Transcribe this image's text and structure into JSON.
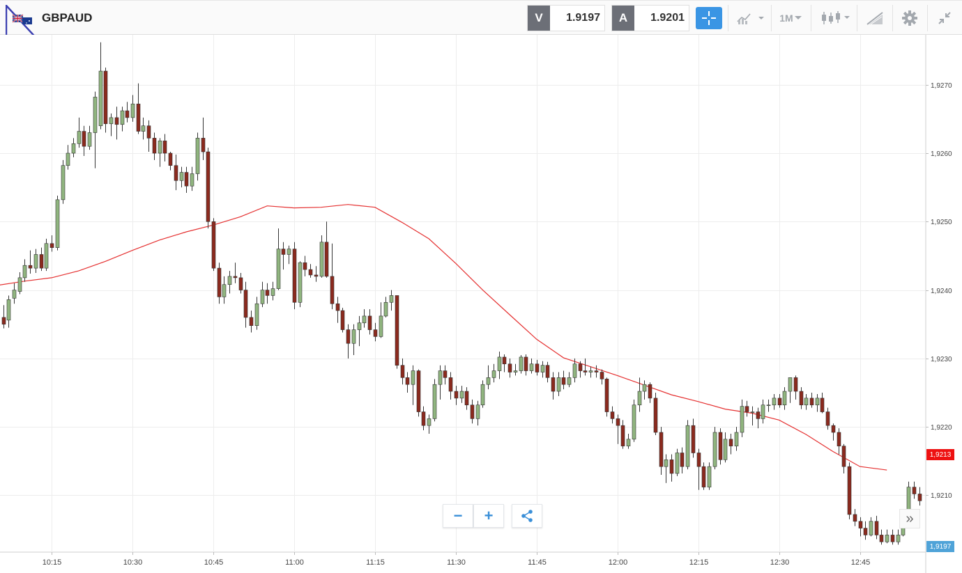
{
  "header": {
    "symbol": "GBPAUD",
    "sell_label": "V",
    "sell_price": "1.9197",
    "buy_label": "A",
    "buy_price": "1.9201",
    "timeframe": "1M"
  },
  "toolbar_icons": [
    "flag-icon",
    "crosshair-icon",
    "chart-type-icon",
    "timeframe-dropdown",
    "candlestick-icon",
    "drawing-tools-icon",
    "gear-icon",
    "collapse-icon"
  ],
  "colors": {
    "bull": "#90b57f",
    "bear": "#8b2a1e",
    "ma_line": "#e53030",
    "current_badge": "#ee1111",
    "bid_badge": "#4fa3d8",
    "accent": "#3a95e4"
  },
  "axis": {
    "current_price_label": "1,9213",
    "bid_price_label": "1,9197"
  },
  "controls": {
    "zoom_out": "−",
    "zoom_in": "+",
    "scroll_right": "»"
  },
  "chart_data": {
    "type": "candlestick",
    "interval": "1M",
    "y_ticks": [
      "1,9270",
      "1,9260",
      "1,9250",
      "1,9240",
      "1,9230",
      "1,9220",
      "1,9210"
    ],
    "y_tick_values": [
      1.927,
      1.926,
      1.925,
      1.924,
      1.923,
      1.922,
      1.921
    ],
    "x_ticks": [
      "10:15",
      "10:30",
      "10:45",
      "11:00",
      "11:15",
      "11:30",
      "11:45",
      "12:00",
      "12:15",
      "12:30",
      "12:45"
    ],
    "ylim": [
      1.92017,
      1.92773
    ],
    "grid": true,
    "moving_average": [
      [
        -1,
        1.92407
      ],
      [
        4,
        1.92413
      ],
      [
        9,
        1.92418
      ],
      [
        14,
        1.92428
      ],
      [
        19,
        1.92442
      ],
      [
        24,
        1.92458
      ],
      [
        29,
        1.92473
      ],
      [
        34,
        1.92485
      ],
      [
        39,
        1.92495
      ],
      [
        44,
        1.92507
      ],
      [
        49,
        1.92523
      ],
      [
        54,
        1.9252
      ],
      [
        59,
        1.92521
      ],
      [
        64,
        1.92525
      ],
      [
        69,
        1.92521
      ],
      [
        74,
        1.92499
      ],
      [
        79,
        1.92475
      ],
      [
        84,
        1.92439
      ],
      [
        89,
        1.924
      ],
      [
        94,
        1.92364
      ],
      [
        99,
        1.92328
      ],
      [
        104,
        1.92301
      ],
      [
        109,
        1.92288
      ],
      [
        114,
        1.92275
      ],
      [
        119,
        1.92261
      ],
      [
        124,
        1.92247
      ],
      [
        129,
        1.92237
      ],
      [
        134,
        1.92226
      ],
      [
        139,
        1.9222
      ],
      [
        144,
        1.9221
      ],
      [
        149,
        1.92189
      ],
      [
        154,
        1.92164
      ],
      [
        159,
        1.92142
      ],
      [
        164,
        1.92137
      ]
    ],
    "candles": [
      [
        1.9236,
        1.9235,
        1.92378,
        1.92344
      ],
      [
        1.92356,
        1.92386,
        1.92392,
        1.92345
      ],
      [
        1.92388,
        1.924,
        1.9241,
        1.9238
      ],
      [
        1.92398,
        1.92418,
        1.92426,
        1.92394
      ],
      [
        1.92418,
        1.92436,
        1.92445,
        1.92412
      ],
      [
        1.92436,
        1.92432,
        1.92458,
        1.92424
      ],
      [
        1.92432,
        1.92452,
        1.9246,
        1.92425
      ],
      [
        1.92452,
        1.92432,
        1.92462,
        1.92428
      ],
      [
        1.92432,
        1.92468,
        1.92475,
        1.92428
      ],
      [
        1.92468,
        1.92462,
        1.9248,
        1.92456
      ],
      [
        1.92462,
        1.92532,
        1.92538,
        1.92458
      ],
      [
        1.92532,
        1.92582,
        1.9259,
        1.92526
      ],
      [
        1.92582,
        1.926,
        1.92612,
        1.92576
      ],
      [
        1.926,
        1.92614,
        1.92622,
        1.92594
      ],
      [
        1.92614,
        1.92632,
        1.92652,
        1.92608
      ],
      [
        1.92632,
        1.9261,
        1.9264,
        1.92596
      ],
      [
        1.9261,
        1.9263,
        1.9264,
        1.92605
      ],
      [
        1.9263,
        1.92682,
        1.9269,
        1.92578
      ],
      [
        1.9264,
        1.9272,
        1.92762,
        1.92635
      ],
      [
        1.9272,
        1.92643,
        1.92725,
        1.9263
      ],
      [
        1.92643,
        1.92652,
        1.92658,
        1.92625
      ],
      [
        1.92652,
        1.92642,
        1.92668,
        1.9262
      ],
      [
        1.92642,
        1.92662,
        1.92668,
        1.92632
      ],
      [
        1.92662,
        1.92652,
        1.92675,
        1.92645
      ],
      [
        1.92652,
        1.92672,
        1.92685,
        1.92646
      ],
      [
        1.92672,
        1.92632,
        1.92702,
        1.92628
      ],
      [
        1.92632,
        1.9264,
        1.92652,
        1.9262
      ],
      [
        1.9264,
        1.92622,
        1.92648,
        1.92602
      ],
      [
        1.92622,
        1.926,
        1.9263,
        1.9259
      ],
      [
        1.926,
        1.92618,
        1.92622,
        1.9258
      ],
      [
        1.92618,
        1.926,
        1.92628,
        1.92588
      ],
      [
        1.926,
        1.92582,
        1.92602,
        1.92575
      ],
      [
        1.92582,
        1.9256,
        1.92598,
        1.92546
      ],
      [
        1.9256,
        1.92572,
        1.9258,
        1.9255
      ],
      [
        1.92572,
        1.92552,
        1.9258,
        1.92542
      ],
      [
        1.92552,
        1.9257,
        1.9258,
        1.92545
      ],
      [
        1.9257,
        1.92622,
        1.9263,
        1.9256
      ],
      [
        1.92622,
        1.92602,
        1.92652,
        1.9259
      ],
      [
        1.92602,
        1.925,
        1.92608,
        1.9249
      ],
      [
        1.925,
        1.92432,
        1.92505,
        1.92428
      ],
      [
        1.92432,
        1.9239,
        1.9244,
        1.9238
      ],
      [
        1.9239,
        1.92408,
        1.9242,
        1.9238
      ],
      [
        1.92408,
        1.9242,
        1.92428,
        1.92395
      ],
      [
        1.9242,
        1.92418,
        1.9244,
        1.9241
      ],
      [
        1.92418,
        1.924,
        1.92425,
        1.92395
      ],
      [
        1.924,
        1.9236,
        1.92412,
        1.92345
      ],
      [
        1.9236,
        1.92348,
        1.9237,
        1.92338
      ],
      [
        1.92348,
        1.9238,
        1.9239,
        1.92342
      ],
      [
        1.9238,
        1.924,
        1.92412,
        1.92375
      ],
      [
        1.924,
        1.92392,
        1.9241,
        1.9238
      ],
      [
        1.92392,
        1.92402,
        1.92412,
        1.92385
      ],
      [
        1.92402,
        1.9246,
        1.9249,
        1.924
      ],
      [
        1.9246,
        1.92452,
        1.9247,
        1.9243
      ],
      [
        1.92452,
        1.9246,
        1.92465,
        1.92438
      ],
      [
        1.9246,
        1.92382,
        1.9247,
        1.92372
      ],
      [
        1.92382,
        1.9244,
        1.92442,
        1.92375
      ],
      [
        1.9244,
        1.9243,
        1.9245,
        1.9242
      ],
      [
        1.9243,
        1.92422,
        1.92438,
        1.92418
      ],
      [
        1.92422,
        1.9242,
        1.92435,
        1.92412
      ],
      [
        1.9242,
        1.9247,
        1.9248,
        1.92418
      ],
      [
        1.9247,
        1.9242,
        1.925,
        1.92418
      ],
      [
        1.9242,
        1.9238,
        1.92468,
        1.92372
      ],
      [
        1.9238,
        1.9237,
        1.9239,
        1.92352
      ],
      [
        1.9237,
        1.92342,
        1.92374,
        1.92338
      ],
      [
        1.92342,
        1.92322,
        1.9235,
        1.923
      ],
      [
        1.92322,
        1.92342,
        1.9235,
        1.92305
      ],
      [
        1.92342,
        1.92352,
        1.92362,
        1.92318
      ],
      [
        1.92352,
        1.92362,
        1.92372,
        1.92345
      ],
      [
        1.92362,
        1.92342,
        1.92372,
        1.92335
      ],
      [
        1.92342,
        1.92332,
        1.92352,
        1.92325
      ],
      [
        1.92332,
        1.92362,
        1.92382,
        1.9233
      ],
      [
        1.92362,
        1.92382,
        1.9239,
        1.9236
      ],
      [
        1.92382,
        1.92392,
        1.924,
        1.9237
      ],
      [
        1.92392,
        1.9229,
        1.92392,
        1.92285
      ],
      [
        1.9229,
        1.92272,
        1.923,
        1.92262
      ],
      [
        1.92272,
        1.92262,
        1.9228,
        1.9225
      ],
      [
        1.92262,
        1.92282,
        1.9229,
        1.92232
      ],
      [
        1.92282,
        1.92222,
        1.92284,
        1.92215
      ],
      [
        1.92222,
        1.92202,
        1.9223,
        1.92195
      ],
      [
        1.92202,
        1.92212,
        1.92218,
        1.9219
      ],
      [
        1.92212,
        1.92262,
        1.9227,
        1.92208
      ],
      [
        1.92262,
        1.92282,
        1.9229,
        1.9224
      ],
      [
        1.92282,
        1.92272,
        1.9229,
        1.92262
      ],
      [
        1.92272,
        1.92252,
        1.9228,
        1.9224
      ],
      [
        1.92252,
        1.92242,
        1.9226,
        1.92232
      ],
      [
        1.92242,
        1.92252,
        1.9226,
        1.92235
      ],
      [
        1.92252,
        1.92232,
        1.92258,
        1.92225
      ],
      [
        1.92232,
        1.92212,
        1.9224,
        1.92205
      ],
      [
        1.92212,
        1.92232,
        1.92238,
        1.92202
      ],
      [
        1.92232,
        1.92262,
        1.92268,
        1.92228
      ],
      [
        1.92262,
        1.92272,
        1.9229,
        1.92255
      ],
      [
        1.92272,
        1.92282,
        1.92292,
        1.92265
      ],
      [
        1.92282,
        1.92302,
        1.9231,
        1.9227
      ],
      [
        1.92302,
        1.92292,
        1.92306,
        1.9228
      ],
      [
        1.92292,
        1.9228,
        1.923,
        1.92272
      ],
      [
        1.9228,
        1.92282,
        1.92292,
        1.92275
      ],
      [
        1.92282,
        1.92302,
        1.92305,
        1.92278
      ],
      [
        1.92302,
        1.92282,
        1.92306,
        1.92275
      ],
      [
        1.92282,
        1.92292,
        1.923,
        1.92278
      ],
      [
        1.92292,
        1.9228,
        1.92298,
        1.92275
      ],
      [
        1.9228,
        1.9229,
        1.92296,
        1.92272
      ],
      [
        1.9229,
        1.92272,
        1.92295,
        1.92265
      ],
      [
        1.92272,
        1.92252,
        1.9228,
        1.9224
      ],
      [
        1.92252,
        1.92272,
        1.9228,
        1.92245
      ],
      [
        1.92272,
        1.92262,
        1.92282,
        1.92255
      ],
      [
        1.92262,
        1.92272,
        1.9228,
        1.92258
      ],
      [
        1.92272,
        1.92292,
        1.923,
        1.92265
      ],
      [
        1.92292,
        1.92282,
        1.92296,
        1.92272
      ],
      [
        1.92282,
        1.9228,
        1.923,
        1.92275
      ],
      [
        1.9228,
        1.92282,
        1.92288,
        1.92272
      ],
      [
        1.92282,
        1.9228,
        1.9229,
        1.92272
      ],
      [
        1.9228,
        1.9227,
        1.92284,
        1.92262
      ],
      [
        1.9227,
        1.92222,
        1.92272,
        1.92215
      ],
      [
        1.92222,
        1.92212,
        1.9223,
        1.92205
      ],
      [
        1.92212,
        1.92202,
        1.92218,
        1.92175
      ],
      [
        1.92202,
        1.92172,
        1.9221,
        1.92168
      ],
      [
        1.92172,
        1.92182,
        1.9219,
        1.92168
      ],
      [
        1.92182,
        1.92232,
        1.9224,
        1.92178
      ],
      [
        1.92232,
        1.92252,
        1.92272,
        1.92222
      ],
      [
        1.92252,
        1.92262,
        1.92268,
        1.9224
      ],
      [
        1.92262,
        1.92242,
        1.92265,
        1.92235
      ],
      [
        1.92242,
        1.92192,
        1.9225,
        1.92188
      ],
      [
        1.92192,
        1.92142,
        1.922,
        1.9213
      ],
      [
        1.92142,
        1.92152,
        1.9216,
        1.92118
      ],
      [
        1.92152,
        1.92132,
        1.9216,
        1.9212
      ],
      [
        1.92132,
        1.92162,
        1.92168,
        1.92128
      ],
      [
        1.92162,
        1.92142,
        1.9217,
        1.92132
      ],
      [
        1.92142,
        1.92202,
        1.9221,
        1.92138
      ],
      [
        1.92202,
        1.92162,
        1.92212,
        1.92155
      ],
      [
        1.92162,
        1.92142,
        1.92168,
        1.92108
      ],
      [
        1.92142,
        1.92112,
        1.92148,
        1.92108
      ],
      [
        1.92112,
        1.92142,
        1.92148,
        1.92108
      ],
      [
        1.92142,
        1.92192,
        1.922,
        1.92138
      ],
      [
        1.92192,
        1.92152,
        1.92198,
        1.92145
      ],
      [
        1.92152,
        1.92182,
        1.92192,
        1.92148
      ],
      [
        1.92182,
        1.92172,
        1.9219,
        1.9216
      ],
      [
        1.92172,
        1.92192,
        1.922,
        1.92165
      ],
      [
        1.92192,
        1.9223,
        1.9224,
        1.92185
      ],
      [
        1.9223,
        1.92222,
        1.92238,
        1.92215
      ],
      [
        1.92222,
        1.92222,
        1.9223,
        1.92202
      ],
      [
        1.92222,
        1.92212,
        1.92228,
        1.92198
      ],
      [
        1.92212,
        1.92232,
        1.9224,
        1.92205
      ],
      [
        1.92232,
        1.92232,
        1.9224,
        1.92222
      ],
      [
        1.92232,
        1.92242,
        1.92248,
        1.92225
      ],
      [
        1.92242,
        1.92232,
        1.92248,
        1.92228
      ],
      [
        1.92232,
        1.92252,
        1.92258,
        1.92225
      ],
      [
        1.92252,
        1.92272,
        1.92272,
        1.92235
      ],
      [
        1.92272,
        1.92252,
        1.92275,
        1.9224
      ],
      [
        1.92252,
        1.92232,
        1.92258,
        1.92226
      ],
      [
        1.92232,
        1.92242,
        1.92248,
        1.92225
      ],
      [
        1.92242,
        1.92232,
        1.9225,
        1.92228
      ],
      [
        1.92232,
        1.92242,
        1.92248,
        1.92222
      ],
      [
        1.92242,
        1.92222,
        1.9225,
        1.9222
      ],
      [
        1.92222,
        1.92202,
        1.92228,
        1.92196
      ],
      [
        1.92202,
        1.92192,
        1.92205,
        1.9218
      ],
      [
        1.92192,
        1.92172,
        1.92198,
        1.9216
      ],
      [
        1.92172,
        1.92142,
        1.92175,
        1.92132
      ],
      [
        1.92142,
        1.92072,
        1.92148,
        1.92065
      ],
      [
        1.92072,
        1.92062,
        1.9208,
        1.92055
      ],
      [
        1.92062,
        1.92052,
        1.92068,
        1.9204
      ],
      [
        1.92052,
        1.92042,
        1.92062,
        1.92035
      ],
      [
        1.92042,
        1.92062,
        1.92068,
        1.9204
      ],
      [
        1.92062,
        1.92042,
        1.9207,
        1.92036
      ],
      [
        1.92042,
        1.92032,
        1.9205,
        1.92028
      ],
      [
        1.92032,
        1.92042,
        1.9205,
        1.9203
      ],
      [
        1.92042,
        1.92032,
        1.9205,
        1.92028
      ],
      [
        1.92032,
        1.92042,
        1.9205,
        1.92028
      ],
      [
        1.92042,
        1.92072,
        1.9208,
        1.9204
      ],
      [
        1.92072,
        1.92112,
        1.9212,
        1.92068
      ],
      [
        1.92112,
        1.92102,
        1.9212,
        1.92095
      ],
      [
        1.92102,
        1.92092,
        1.92112,
        1.92085
      ],
      [
        1.92092,
        1.92102,
        1.92112,
        1.92088
      ],
      [
        1.92102,
        1.92062,
        1.92108,
        1.92055
      ],
      [
        1.92062,
        1.92072,
        1.92082,
        1.92058
      ],
      [
        1.92072,
        1.92052,
        1.9209,
        1.9204
      ],
      [
        1.92052,
        1.92092,
        1.92098,
        1.92048
      ],
      [
        1.92092,
        1.92032,
        1.92098,
        1.9203
      ],
      [
        1.92032,
        1.92052,
        1.92062,
        1.9203
      ],
      [
        1.92052,
        1.92082,
        1.92088,
        1.92048
      ],
      [
        1.92082,
        1.92072,
        1.9209,
        1.92065
      ],
      [
        1.92072,
        1.92082,
        1.9209,
        1.92068
      ],
      [
        1.92082,
        1.92102,
        1.92112,
        1.92078
      ],
      [
        1.92102,
        1.92122,
        1.9213,
        1.92098
      ],
      [
        1.92122,
        1.92112,
        1.92128,
        1.92105
      ],
      [
        1.92112,
        1.92072,
        1.92118,
        1.92065
      ],
      [
        1.92072,
        1.92062,
        1.92078,
        1.92055
      ],
      [
        1.92062,
        1.92052,
        1.92082,
        1.92045
      ]
    ]
  }
}
